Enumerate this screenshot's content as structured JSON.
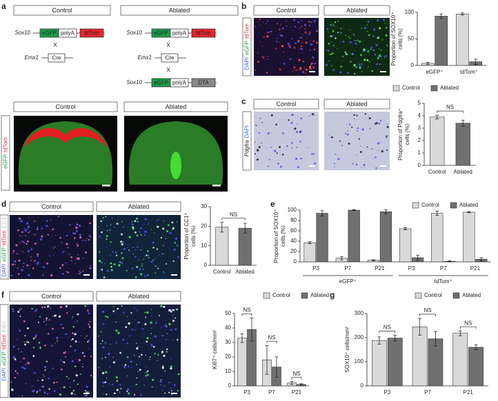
{
  "panels": {
    "a": {
      "label": "a",
      "top_headers": [
        "Control",
        "Ablated"
      ],
      "control_construct": {
        "gene": "Sox10",
        "parts": [
          "eGFP",
          "polyA",
          "tdTom"
        ]
      },
      "control_cre": {
        "gene": "Emx1",
        "part": "Cre"
      },
      "ablated_construct": {
        "gene": "Sox10",
        "parts": [
          "eGFP",
          "polyA",
          "tdTom"
        ]
      },
      "ablated_cre": {
        "gene": "Emx1",
        "part": "Cre"
      },
      "ablated_dta": {
        "gene": "Sox10",
        "parts": [
          "eGFP",
          "polyA",
          "DTA"
        ]
      },
      "crosses": [
        "X",
        "X",
        "X"
      ],
      "image_headers": [
        "Control",
        "Ablated"
      ],
      "stain": [
        "eGFP",
        "tdTom"
      ]
    },
    "b": {
      "label": "b",
      "image_headers": [
        "Control",
        "Ablated"
      ],
      "stain": [
        "DAPI",
        "eGFP",
        "tdTom"
      ]
    },
    "c": {
      "label": "c",
      "image_headers": [
        "Control",
        "Ablated"
      ],
      "stain": [
        "Pdgfra",
        "DAPI"
      ]
    },
    "d": {
      "label": "d",
      "image_headers": [
        "Control",
        "Ablated"
      ],
      "stain": [
        "DAPI",
        "eGFP",
        "tdTom",
        "CC1"
      ]
    },
    "e": {
      "label": "e"
    },
    "f": {
      "label": "f",
      "image_headers": [
        "Control",
        "Ablated"
      ],
      "stain": [
        "DAPI",
        "eGFP",
        "tdTom",
        "Ki67"
      ]
    },
    "g": {
      "label": "g"
    }
  },
  "chart_data": [
    {
      "type": "bar",
      "ylabel": [
        "Proportion of SOX10⁺",
        "cells (%)"
      ],
      "categories": [
        "eGFP⁺",
        "tdTom⁺"
      ],
      "series": [
        {
          "name": "Control",
          "color": "#d9d9d9",
          "values": [
            4,
            97
          ],
          "errors": [
            2,
            2
          ]
        },
        {
          "name": "Ablated",
          "color": "#707070",
          "values": [
            93,
            7
          ],
          "errors": [
            4,
            5
          ]
        }
      ],
      "ylim": [
        0,
        100
      ],
      "yticks": [
        0,
        50,
        100
      ],
      "legend": true
    },
    {
      "type": "bar",
      "ylabel": [
        "Proportion of Pdgfra⁺",
        "cells (%)"
      ],
      "categories": [
        "Control",
        "Ablated"
      ],
      "values": [
        3.9,
        3.4
      ],
      "errors": [
        0.15,
        0.25
      ],
      "colors": [
        "#d9d9d9",
        "#707070"
      ],
      "ylim": [
        0,
        5
      ],
      "yticks": [
        0,
        1,
        2,
        3,
        4,
        5
      ],
      "annotations": [
        "NS"
      ]
    },
    {
      "type": "bar",
      "ylabel": [
        "Proportion of CC1⁺",
        "cells (%)"
      ],
      "categories": [
        "Control",
        "Ablated"
      ],
      "values": [
        19.5,
        19
      ],
      "errors": [
        2.5,
        2.5
      ],
      "colors": [
        "#d9d9d9",
        "#707070"
      ],
      "ylim": [
        0,
        30
      ],
      "yticks": [
        0,
        10,
        20,
        30
      ],
      "annotations": [
        "NS"
      ]
    },
    {
      "type": "bar",
      "ylabel": [
        "Proportion of SOX10⁺",
        "cells (%)"
      ],
      "categories": [
        "P3",
        "P7",
        "P21",
        "P3",
        "P7",
        "P21"
      ],
      "groups": [
        "eGFP⁺",
        "tdTom⁺"
      ],
      "series": [
        {
          "name": "Control",
          "color": "#d9d9d9",
          "values": [
            37,
            7,
            3,
            64,
            94,
            96
          ],
          "errors": [
            2,
            3,
            1,
            2,
            4,
            1
          ]
        },
        {
          "name": "Ablated",
          "color": "#707070",
          "values": [
            94,
            100,
            97,
            8,
            1,
            5
          ],
          "errors": [
            5,
            1,
            4,
            5,
            1,
            3
          ]
        }
      ],
      "ylim": [
        0,
        100
      ],
      "yticks": [
        0,
        20,
        40,
        60,
        80,
        100
      ],
      "legend": true
    },
    {
      "type": "bar",
      "ylabel": [
        "Ki67⁺ cells/mm²"
      ],
      "categories": [
        "P3",
        "P7",
        "P21"
      ],
      "series": [
        {
          "name": "Control",
          "color": "#d9d9d9",
          "values": [
            33,
            18,
            2
          ],
          "errors": [
            3,
            10,
            1
          ]
        },
        {
          "name": "Ablated",
          "color": "#707070",
          "values": [
            39,
            13,
            1
          ],
          "errors": [
            8,
            7,
            0.5
          ]
        }
      ],
      "ylim": [
        0,
        50
      ],
      "yticks": [
        0,
        10,
        20,
        30,
        40,
        50
      ],
      "annotations": [
        "NS",
        "NS",
        "NS"
      ],
      "legend": true
    },
    {
      "type": "bar",
      "ylabel": [
        "SOX10⁺ cells/mm²"
      ],
      "categories": [
        "P3",
        "P7",
        "P21"
      ],
      "series": [
        {
          "name": "Control",
          "color": "#d9d9d9",
          "values": [
            188,
            245,
            218
          ],
          "errors": [
            15,
            35,
            10
          ]
        },
        {
          "name": "Ablated",
          "color": "#707070",
          "values": [
            198,
            195,
            160
          ],
          "errors": [
            12,
            30,
            10
          ]
        }
      ],
      "ylim": [
        0,
        300
      ],
      "yticks": [
        0,
        100,
        200,
        300
      ],
      "annotations": [
        "NS",
        "NS",
        "NS"
      ],
      "legend": true
    }
  ]
}
